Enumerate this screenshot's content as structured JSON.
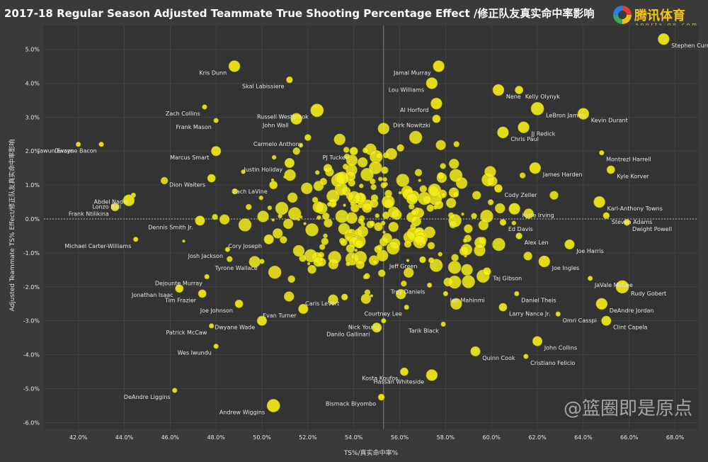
{
  "page": {
    "title": "2017-18 Regular Season Adjusted Teammate True Shooting Percentage Effect /修正队友真实命中率影响",
    "logo_text": "腾讯体育",
    "logo_sub": "sports.qq.com",
    "watermark": "@篮圈即是原点"
  },
  "colors": {
    "background": "#3a3a3a",
    "plot_background": "#333333",
    "bubble_fill": "#f5ee1b",
    "bubble_stroke": "#b7b000",
    "grid": "#4a4a4a",
    "text": "#e6e6e6"
  },
  "chart_data": {
    "type": "scatter",
    "title": "2017-18 Regular Season Adjusted Teammate True Shooting Percentage Effect /修正队友真实命中率影响",
    "xlabel": "TS%/真实命中率%",
    "ylabel": "Adjusted Teammate TS% Effect/修正队友真实命中率影响",
    "xlim": [
      40.5,
      69.0
    ],
    "ylim": [
      -6.2,
      5.7
    ],
    "x_ticks": [
      "42.0%",
      "44.0%",
      "46.0%",
      "48.0%",
      "50.0%",
      "52.0%",
      "54.0%",
      "56.0%",
      "58.0%",
      "60.0%",
      "62.0%",
      "64.0%",
      "66.0%",
      "68.0%"
    ],
    "y_ticks": [
      "5.0%",
      "4.0%",
      "3.0%",
      "2.0%",
      "1.0%",
      "0.0%",
      "-1.0%",
      "-2.0%",
      "-3.0%",
      "-4.0%",
      "-5.0%",
      "-6.0%"
    ],
    "reference_lines": {
      "x": 55.3,
      "y": 0.0
    },
    "grid": true,
    "labeled_points": [
      {
        "name": "Stephen Curry",
        "x": 67.5,
        "y": 5.3,
        "size": 3
      },
      {
        "name": "Jamal Murray",
        "x": 57.7,
        "y": 4.5,
        "size": 3
      },
      {
        "name": "Kris Dunn",
        "x": 48.8,
        "y": 4.5,
        "size": 3
      },
      {
        "name": "Skal Labissiere",
        "x": 51.2,
        "y": 4.1,
        "size": 1.5
      },
      {
        "name": "Lou Williams",
        "x": 57.4,
        "y": 4.0,
        "size": 3
      },
      {
        "name": "Nene",
        "x": 60.3,
        "y": 3.8,
        "size": 3
      },
      {
        "name": "Kelly Olynyk",
        "x": 61.2,
        "y": 3.8,
        "size": 2
      },
      {
        "name": "Zach Collins",
        "x": 47.5,
        "y": 3.3,
        "size": 1
      },
      {
        "name": "Russell Westbrook",
        "x": 52.4,
        "y": 3.2,
        "size": 3.5
      },
      {
        "name": "Al Horford",
        "x": 57.6,
        "y": 3.4,
        "size": 3
      },
      {
        "name": "LeBron James",
        "x": 62.0,
        "y": 3.25,
        "size": 3.5
      },
      {
        "name": "Frank Mason",
        "x": 48.0,
        "y": 2.9,
        "size": 1
      },
      {
        "name": "Dirk Nowitzki",
        "x": 57.6,
        "y": 2.95,
        "size": 2
      },
      {
        "name": "Kevin Durant",
        "x": 64.0,
        "y": 3.1,
        "size": 3
      },
      {
        "name": "John Wall",
        "x": 51.5,
        "y": 2.95,
        "size": 3
      },
      {
        "name": "JJ Redick",
        "x": 61.4,
        "y": 2.7,
        "size": 3
      },
      {
        "name": "Carmelo Anthony",
        "x": 52.0,
        "y": 2.4,
        "size": 1.5
      },
      {
        "name": "Dwayne Bacon",
        "x": 43.0,
        "y": 2.2,
        "size": 1
      },
      {
        "name": "Jawun Evans",
        "x": 42.0,
        "y": 2.2,
        "size": 1
      },
      {
        "name": "Chris Paul",
        "x": 60.5,
        "y": 2.55,
        "size": 3
      },
      {
        "name": "Marcus Smart",
        "x": 48.0,
        "y": 2.0,
        "size": 2.5
      },
      {
        "name": "PJ Tucker",
        "x": 54.0,
        "y": 2.0,
        "size": 2
      },
      {
        "name": "Montrezl Harrell",
        "x": 64.8,
        "y": 1.95,
        "size": 1
      },
      {
        "name": "Justin Holiday",
        "x": 51.2,
        "y": 1.65,
        "size": 2.5
      },
      {
        "name": "James Harden",
        "x": 61.9,
        "y": 1.5,
        "size": 3
      },
      {
        "name": "Kyle Korver",
        "x": 65.2,
        "y": 1.45,
        "size": 2
      },
      {
        "name": "Dion Waiters",
        "x": 47.8,
        "y": 1.2,
        "size": 2
      },
      {
        "name": "Zach LaVine",
        "x": 50.5,
        "y": 1.0,
        "size": 2
      },
      {
        "name": "Abdel Nader",
        "x": 44.4,
        "y": 0.7,
        "size": 1
      },
      {
        "name": "Lonzo Ball",
        "x": 44.2,
        "y": 0.55,
        "size": 3
      },
      {
        "name": "Cody Zeller",
        "x": 60.3,
        "y": 0.9,
        "size": 2
      },
      {
        "name": "Karl-Anthony Towns",
        "x": 64.7,
        "y": 0.5,
        "size": 3
      },
      {
        "name": "Kyrie Irving",
        "x": 61.0,
        "y": 0.3,
        "size": 3
      },
      {
        "name": "Steven Adams",
        "x": 65.0,
        "y": 0.1,
        "size": 1.5
      },
      {
        "name": "Frank Ntilikina",
        "x": 43.6,
        "y": 0.35,
        "size": 2
      },
      {
        "name": "Dennis Smith Jr.",
        "x": 47.3,
        "y": -0.05,
        "size": 2.5
      },
      {
        "name": "Ed Davis",
        "x": 60.5,
        "y": -0.1,
        "size": 1.5
      },
      {
        "name": "Dwight Powell",
        "x": 65.9,
        "y": -0.1,
        "size": 1.5
      },
      {
        "name": "Cory Joseph",
        "x": 50.3,
        "y": -0.6,
        "size": 2.5
      },
      {
        "name": "Michael Carter-Williams",
        "x": 44.5,
        "y": -0.6,
        "size": 1
      },
      {
        "name": "Alex Len",
        "x": 61.2,
        "y": -0.5,
        "size": 1.5
      },
      {
        "name": "Joe Harris",
        "x": 63.4,
        "y": -0.75,
        "size": 2.5
      },
      {
        "name": "Josh Jackson",
        "x": 48.5,
        "y": -0.9,
        "size": 1
      },
      {
        "name": "Tyrone Wallace",
        "x": 50.0,
        "y": -1.25,
        "size": 1
      },
      {
        "name": "Jeff Green",
        "x": 57.0,
        "y": -1.2,
        "size": 1.5
      },
      {
        "name": "Joe Ingles",
        "x": 62.3,
        "y": -1.25,
        "size": 3
      },
      {
        "name": "Taj Gibson",
        "x": 59.8,
        "y": -1.55,
        "size": 2
      },
      {
        "name": "Dejounte Murray",
        "x": 47.6,
        "y": -1.7,
        "size": 1
      },
      {
        "name": "JaVale McGee",
        "x": 64.3,
        "y": -1.75,
        "size": 1
      },
      {
        "name": "Jonathan Isaac",
        "x": 46.4,
        "y": -2.05,
        "size": 2
      },
      {
        "name": "Tim Frazier",
        "x": 47.4,
        "y": -2.2,
        "size": 2
      },
      {
        "name": "Troy Daniels",
        "x": 57.3,
        "y": -1.95,
        "size": 1
      },
      {
        "name": "Rudy Gobert",
        "x": 65.7,
        "y": -2.0,
        "size": 3.5
      },
      {
        "name": "Caris LeVert",
        "x": 53.6,
        "y": -2.3,
        "size": 1.5
      },
      {
        "name": "Ian Mahinmi",
        "x": 58.0,
        "y": -2.2,
        "size": 1
      },
      {
        "name": "Daniel Theis",
        "x": 61.1,
        "y": -2.2,
        "size": 1
      },
      {
        "name": "Joe Johnson",
        "x": 49.0,
        "y": -2.5,
        "size": 2
      },
      {
        "name": "DeAndre Jordan",
        "x": 64.8,
        "y": -2.5,
        "size": 3
      },
      {
        "name": "Courtney Lee",
        "x": 56.3,
        "y": -2.6,
        "size": 1
      },
      {
        "name": "Larry Nance Jr.",
        "x": 60.5,
        "y": -2.6,
        "size": 2
      },
      {
        "name": "Evan Turner",
        "x": 51.8,
        "y": -2.65,
        "size": 2.5
      },
      {
        "name": "Omri Casspi",
        "x": 62.9,
        "y": -2.8,
        "size": 1
      },
      {
        "name": "Patrick McCaw",
        "x": 47.8,
        "y": -3.15,
        "size": 1
      },
      {
        "name": "Dwyane Wade",
        "x": 50.0,
        "y": -3.0,
        "size": 2.5
      },
      {
        "name": "Nick Young",
        "x": 55.3,
        "y": -3.0,
        "size": 1
      },
      {
        "name": "Tarik Black",
        "x": 57.9,
        "y": -3.1,
        "size": 1
      },
      {
        "name": "Clint Capela",
        "x": 65.0,
        "y": -3.0,
        "size": 2.5
      },
      {
        "name": "Danilo Gallinari",
        "x": 55.0,
        "y": -3.2,
        "size": 2.5
      },
      {
        "name": "John Collins",
        "x": 62.0,
        "y": -3.6,
        "size": 2.5
      },
      {
        "name": "Wes Iwundu",
        "x": 48.0,
        "y": -3.75,
        "size": 1
      },
      {
        "name": "Quinn Cook",
        "x": 59.3,
        "y": -3.9,
        "size": 2.5
      },
      {
        "name": "Cristiano Felicio",
        "x": 61.5,
        "y": -4.05,
        "size": 1
      },
      {
        "name": "Kosta Koufos",
        "x": 56.2,
        "y": -4.5,
        "size": 2
      },
      {
        "name": "Hassan Whiteside",
        "x": 57.4,
        "y": -4.6,
        "size": 3
      },
      {
        "name": "DeAndre Liggins",
        "x": 46.2,
        "y": -5.05,
        "size": 1
      },
      {
        "name": "Bismack Biyombo",
        "x": 55.2,
        "y": -5.25,
        "size": 1.5
      },
      {
        "name": "Andrew Wiggins",
        "x": 50.5,
        "y": -5.5,
        "size": 3.5
      }
    ]
  }
}
